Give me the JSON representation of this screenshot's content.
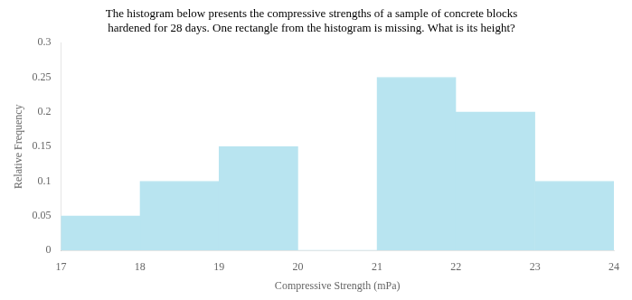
{
  "chart_data": {
    "type": "histogram",
    "title": [
      "The histogram below presents the compressive strengths of a sample of concrete blocks",
      "hardened for 28 days. One rectangle from the histogram is missing. What is its height?"
    ],
    "xlabel": "Compressive Strength (mPa)",
    "ylabel": "Relative Frequency",
    "bins": [
      17,
      18,
      19,
      20,
      21,
      22,
      23,
      24
    ],
    "values": [
      0.05,
      0.1,
      0.15,
      0.0,
      0.25,
      0.2,
      0.1
    ],
    "color": "#b8e4f0",
    "xlim": [
      17,
      24
    ],
    "xticks": [
      17,
      18,
      19,
      20,
      21,
      22,
      23,
      24
    ],
    "ylim": [
      0,
      0.3
    ],
    "yticks": [
      0,
      0.05,
      0.1,
      0.15,
      0.2,
      0.25,
      0.3
    ],
    "grid": false
  }
}
